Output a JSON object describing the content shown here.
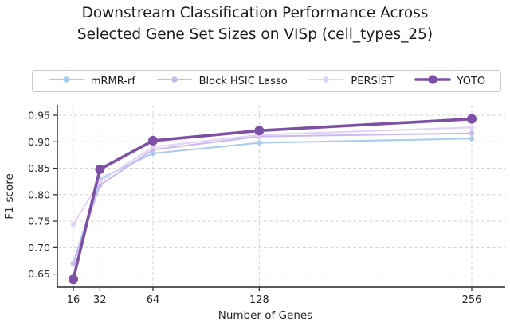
{
  "title": {
    "line1": "Downstream Classification Performance Across",
    "line2": "Selected Gene Set Sizes on VISp (cell_types_25)"
  },
  "colors": {
    "axis": "#262626",
    "grid": "#d4d4d4",
    "legend_border": "#c9c9c9",
    "background": "#ffffff",
    "title_text": "#1a1a1a"
  },
  "chart_data": {
    "type": "line",
    "title": "Downstream Classification Performance Across Selected Gene Set Sizes on VISp (cell_types_25)",
    "xlabel": "Number of Genes",
    "ylabel": "F1-score",
    "x": [
      16,
      32,
      64,
      128,
      256
    ],
    "x_ticks": [
      16,
      32,
      64,
      128,
      256
    ],
    "y_ticks": [
      0.65,
      0.7,
      0.75,
      0.8,
      0.85,
      0.9,
      0.95
    ],
    "xlim": [
      6.4,
      276.2
    ],
    "ylim": [
      0.625,
      0.97
    ],
    "x_scale": "linear",
    "grid": true,
    "grid_style": "dashed",
    "legend_position": "top",
    "series": [
      {
        "name": "mRMR-rf",
        "color": "#a9cbee",
        "values": [
          0.67,
          0.83,
          0.878,
          0.898,
          0.906
        ],
        "line_width": 2,
        "marker_radius": 3.2
      },
      {
        "name": "Block HSIC Lasso",
        "color": "#c7b8f0",
        "values": [
          0.669,
          0.818,
          0.885,
          0.91,
          0.916
        ],
        "line_width": 2,
        "marker_radius": 3.2
      },
      {
        "name": "PERSIST",
        "color": "#e4d2f6",
        "values": [
          0.744,
          0.825,
          0.89,
          0.913,
          0.927
        ],
        "line_width": 2,
        "marker_radius": 3.2
      },
      {
        "name": "YOTO",
        "color": "#7d4fa5",
        "values": [
          0.64,
          0.848,
          0.902,
          0.921,
          0.943
        ],
        "line_width": 3.6,
        "marker_radius": 6
      }
    ]
  }
}
